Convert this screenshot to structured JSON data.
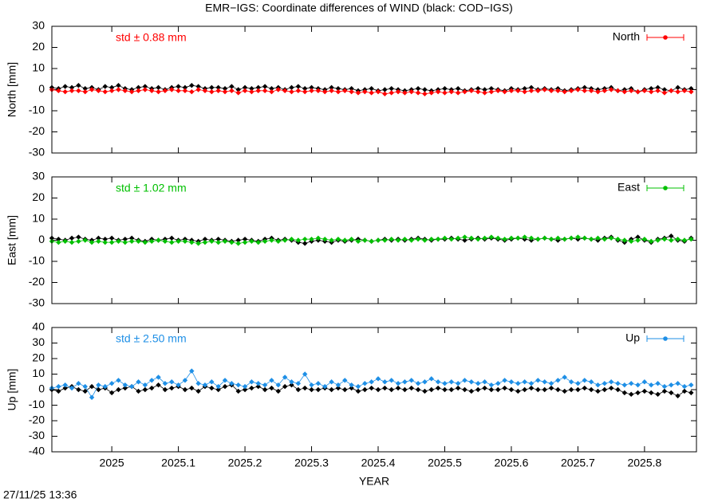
{
  "title": "EMR−IGS: Coordinate differences of WIND (black: COD−IGS)",
  "timestamp": "27/11/25 13:36",
  "chart_data": [
    {
      "type": "line",
      "ylabel": "North [mm]",
      "annotation": "std ± 0.88 mm",
      "x": [
        2024.91,
        2024.92,
        2024.93,
        2024.94,
        2024.95,
        2024.96,
        2024.97,
        2024.98,
        2024.99,
        2025.0,
        2025.01,
        2025.02,
        2025.03,
        2025.04,
        2025.05,
        2025.06,
        2025.07,
        2025.08,
        2025.09,
        2025.1,
        2025.11,
        2025.12,
        2025.13,
        2025.14,
        2025.15,
        2025.16,
        2025.17,
        2025.18,
        2025.19,
        2025.2,
        2025.21,
        2025.22,
        2025.23,
        2025.24,
        2025.25,
        2025.26,
        2025.27,
        2025.28,
        2025.29,
        2025.3,
        2025.31,
        2025.32,
        2025.33,
        2025.34,
        2025.35,
        2025.36,
        2025.37,
        2025.38,
        2025.39,
        2025.4,
        2025.41,
        2025.42,
        2025.43,
        2025.44,
        2025.45,
        2025.46,
        2025.47,
        2025.48,
        2025.49,
        2025.5,
        2025.51,
        2025.52,
        2025.53,
        2025.54,
        2025.55,
        2025.56,
        2025.57,
        2025.58,
        2025.59,
        2025.6,
        2025.61,
        2025.62,
        2025.63,
        2025.64,
        2025.65,
        2025.66,
        2025.67,
        2025.68,
        2025.69,
        2025.7,
        2025.71,
        2025.72,
        2025.73,
        2025.74,
        2025.75,
        2025.76,
        2025.77,
        2025.78,
        2025.79,
        2025.8,
        2025.81,
        2025.82,
        2025.83,
        2025.84,
        2025.85,
        2025.86,
        2025.87
      ],
      "series": [
        {
          "color": "#000000",
          "values": [
            1,
            0.5,
            1.5,
            1,
            2,
            0.5,
            1,
            0,
            1.5,
            1,
            2,
            0.5,
            0,
            1,
            1.5,
            0.5,
            1,
            0,
            1,
            1.5,
            1,
            2,
            1.5,
            0.5,
            1,
            1,
            0.5,
            1.5,
            0,
            1,
            0.5,
            1,
            1.5,
            0.5,
            1,
            0,
            1,
            1.5,
            0.5,
            1,
            0.5,
            0,
            1,
            0.5,
            0,
            0.5,
            -0.5,
            0,
            0.5,
            -0.5,
            0,
            0.5,
            0,
            -0.5,
            0,
            0.5,
            0,
            -0.5,
            0,
            0.5,
            0,
            0.5,
            -0.5,
            0,
            0.5,
            0,
            0.5,
            0,
            -0.5,
            0.5,
            0,
            0.5,
            1,
            0,
            0.5,
            0,
            0.5,
            -0.5,
            0,
            0.5,
            1,
            0.5,
            0,
            0.5,
            1,
            -0.5,
            0,
            0.5,
            -1,
            0,
            0.5,
            1,
            0,
            -0.5,
            1,
            0,
            0.5
          ]
        },
        {
          "name": "North",
          "color": "#ff0000",
          "values": [
            0,
            -0.5,
            -1,
            -0.5,
            -0.5,
            -1,
            0,
            -0.5,
            -1,
            -0.5,
            0,
            -0.5,
            -1,
            -0.5,
            0,
            -0.5,
            -1,
            -0.5,
            0,
            -0.5,
            -0.5,
            -1,
            0,
            -0.5,
            -1,
            -0.5,
            -1,
            -0.5,
            -1.5,
            -0.5,
            -1,
            -0.5,
            -0.5,
            -1,
            0,
            -0.5,
            -1,
            -0.5,
            -1,
            -0.5,
            -0.5,
            -1,
            -0.5,
            -1,
            -0.5,
            -1,
            -1.5,
            -1,
            -1.5,
            -1,
            -2,
            -1.5,
            -1,
            -1.5,
            -1,
            -1.5,
            -2,
            -1.5,
            -1,
            -1.5,
            -1,
            -1.5,
            -1,
            -0.5,
            -1,
            -1.5,
            -1,
            -0.5,
            -1,
            -0.5,
            -0.5,
            -1,
            -0.5,
            -0.5,
            0,
            -0.5,
            -0.5,
            -1,
            -0.5,
            0,
            -0.5,
            -0.5,
            -1,
            -0.5,
            0,
            -0.5,
            -1,
            -0.5,
            -1,
            -0.5,
            -1,
            -0.5,
            -1.5,
            -0.5,
            -1,
            -0.5,
            -1
          ]
        }
      ],
      "xlim": [
        2024.91,
        2025.878
      ],
      "xticks": [
        2025,
        2025.1,
        2025.2,
        2025.3,
        2025.4,
        2025.5,
        2025.6,
        2025.7,
        2025.8
      ],
      "ylim": [
        -30,
        30
      ],
      "yticks": [
        -30,
        -20,
        -10,
        0,
        10,
        20,
        30
      ],
      "legend": "upper right"
    },
    {
      "type": "line",
      "ylabel": "East [mm]",
      "annotation": "std ± 1.02 mm",
      "x": [
        2024.91,
        2024.92,
        2024.93,
        2024.94,
        2024.95,
        2024.96,
        2024.97,
        2024.98,
        2024.99,
        2025.0,
        2025.01,
        2025.02,
        2025.03,
        2025.04,
        2025.05,
        2025.06,
        2025.07,
        2025.08,
        2025.09,
        2025.1,
        2025.11,
        2025.12,
        2025.13,
        2025.14,
        2025.15,
        2025.16,
        2025.17,
        2025.18,
        2025.19,
        2025.2,
        2025.21,
        2025.22,
        2025.23,
        2025.24,
        2025.25,
        2025.26,
        2025.27,
        2025.28,
        2025.29,
        2025.3,
        2025.31,
        2025.32,
        2025.33,
        2025.34,
        2025.35,
        2025.36,
        2025.37,
        2025.38,
        2025.39,
        2025.4,
        2025.41,
        2025.42,
        2025.43,
        2025.44,
        2025.45,
        2025.46,
        2025.47,
        2025.48,
        2025.49,
        2025.5,
        2025.51,
        2025.52,
        2025.53,
        2025.54,
        2025.55,
        2025.56,
        2025.57,
        2025.58,
        2025.59,
        2025.6,
        2025.61,
        2025.62,
        2025.63,
        2025.64,
        2025.65,
        2025.66,
        2025.67,
        2025.68,
        2025.69,
        2025.7,
        2025.71,
        2025.72,
        2025.73,
        2025.74,
        2025.75,
        2025.76,
        2025.77,
        2025.78,
        2025.79,
        2025.8,
        2025.81,
        2025.82,
        2025.83,
        2025.84,
        2025.85,
        2025.86,
        2025.87
      ],
      "series": [
        {
          "color": "#000000",
          "values": [
            1,
            0.5,
            0,
            1,
            1.5,
            0.5,
            0,
            1,
            0.5,
            1,
            0,
            0.5,
            1,
            0,
            -0.5,
            0.5,
            0,
            0.5,
            1,
            0,
            0.5,
            0,
            -0.5,
            0.5,
            0,
            0.5,
            0,
            -0.5,
            0,
            0.5,
            0,
            -0.5,
            0.5,
            1,
            0,
            0.5,
            0,
            -1,
            -1.5,
            -0.5,
            0,
            -0.5,
            -1,
            0,
            -0.5,
            0,
            0.5,
            0,
            -0.5,
            0,
            0.5,
            0,
            0.5,
            0,
            0.5,
            1,
            0.5,
            0,
            0.5,
            0.5,
            1,
            0.5,
            0,
            0.5,
            1,
            0.5,
            1,
            0.5,
            0,
            0.5,
            1,
            0.5,
            0,
            0.5,
            1,
            0.5,
            0,
            0.5,
            1,
            0.5,
            1,
            0.5,
            0,
            1,
            1.5,
            0,
            -1,
            0.5,
            1.5,
            0,
            -1,
            0.5,
            1,
            2,
            0,
            -0.5,
            1
          ]
        },
        {
          "name": "East",
          "color": "#00c000",
          "values": [
            -0.5,
            -1,
            -0.5,
            -1,
            -0.5,
            0,
            -1,
            -0.5,
            -1,
            -1,
            -0.5,
            -1,
            -0.5,
            -0.5,
            -1,
            -0.5,
            0,
            -0.5,
            -1,
            -0.5,
            -0.5,
            -1,
            -1.5,
            -1,
            -0.5,
            -1,
            -0.5,
            -1,
            -1.5,
            -1,
            -0.5,
            -1,
            -0.5,
            0,
            -0.5,
            0,
            0.5,
            0,
            0.5,
            0.5,
            1,
            0.5,
            0,
            0.5,
            0,
            0.5,
            -0.5,
            0,
            -0.5,
            0,
            0,
            0.5,
            0,
            0.5,
            0,
            0.5,
            0,
            0.5,
            0.5,
            1,
            0.5,
            1,
            1.5,
            1,
            0.5,
            1,
            1.5,
            1,
            0.5,
            1,
            1,
            1.5,
            1,
            0.5,
            1,
            0.5,
            1,
            0.5,
            1,
            1.5,
            1,
            0.5,
            1,
            0.5,
            1,
            0.5,
            0,
            -0.5,
            0,
            0.5,
            -0.5,
            0,
            0.5,
            0,
            0.5,
            0,
            0.5
          ]
        }
      ],
      "xlim": [
        2024.91,
        2025.878
      ],
      "xticks": [
        2025,
        2025.1,
        2025.2,
        2025.3,
        2025.4,
        2025.5,
        2025.6,
        2025.7,
        2025.8
      ],
      "ylim": [
        -30,
        30
      ],
      "yticks": [
        -30,
        -20,
        -10,
        0,
        10,
        20,
        30
      ],
      "legend": "upper right"
    },
    {
      "type": "line",
      "ylabel": "Up [mm]",
      "xlabel": "YEAR",
      "annotation": "std ± 2.50 mm",
      "x": [
        2024.91,
        2024.92,
        2024.93,
        2024.94,
        2024.95,
        2024.96,
        2024.97,
        2024.98,
        2024.99,
        2025.0,
        2025.01,
        2025.02,
        2025.03,
        2025.04,
        2025.05,
        2025.06,
        2025.07,
        2025.08,
        2025.09,
        2025.1,
        2025.11,
        2025.12,
        2025.13,
        2025.14,
        2025.15,
        2025.16,
        2025.17,
        2025.18,
        2025.19,
        2025.2,
        2025.21,
        2025.22,
        2025.23,
        2025.24,
        2025.25,
        2025.26,
        2025.27,
        2025.28,
        2025.29,
        2025.3,
        2025.31,
        2025.32,
        2025.33,
        2025.34,
        2025.35,
        2025.36,
        2025.37,
        2025.38,
        2025.39,
        2025.4,
        2025.41,
        2025.42,
        2025.43,
        2025.44,
        2025.45,
        2025.46,
        2025.47,
        2025.48,
        2025.49,
        2025.5,
        2025.51,
        2025.52,
        2025.53,
        2025.54,
        2025.55,
        2025.56,
        2025.57,
        2025.58,
        2025.59,
        2025.6,
        2025.61,
        2025.62,
        2025.63,
        2025.64,
        2025.65,
        2025.66,
        2025.67,
        2025.68,
        2025.69,
        2025.7,
        2025.71,
        2025.72,
        2025.73,
        2025.74,
        2025.75,
        2025.76,
        2025.77,
        2025.78,
        2025.79,
        2025.8,
        2025.81,
        2025.82,
        2025.83,
        2025.84,
        2025.85,
        2025.86,
        2025.87
      ],
      "series": [
        {
          "color": "#000000",
          "values": [
            0,
            -1,
            1,
            2,
            0,
            -1,
            2,
            0,
            1,
            -2,
            0,
            1,
            2,
            -1,
            0,
            1,
            3,
            0,
            1,
            2,
            0,
            1,
            -1,
            2,
            1,
            0,
            2,
            3,
            -1,
            0,
            1,
            2,
            0,
            1,
            -1,
            2,
            3,
            0,
            1,
            0,
            0,
            1,
            0,
            1,
            0,
            1,
            -1,
            0,
            1,
            0,
            1,
            0,
            1,
            0,
            1,
            0,
            -1,
            0,
            1,
            0,
            0,
            1,
            0,
            -1,
            0,
            1,
            0,
            0,
            1,
            0,
            -1,
            0,
            1,
            0,
            0,
            1,
            0,
            -1,
            0,
            0,
            1,
            0,
            -1,
            0,
            1,
            0,
            -2,
            -3,
            -2,
            -1,
            -2,
            -3,
            -1,
            -2,
            -4,
            -1,
            -2
          ]
        },
        {
          "name": "Up",
          "color": "#1e8fe6",
          "values": [
            1,
            2,
            3,
            1,
            4,
            2,
            -5,
            3,
            2,
            4,
            6,
            3,
            2,
            5,
            3,
            6,
            8,
            4,
            5,
            3,
            6,
            12,
            4,
            3,
            5,
            2,
            6,
            4,
            3,
            2,
            5,
            4,
            3,
            6,
            3,
            8,
            5,
            4,
            10,
            3,
            4,
            2,
            5,
            3,
            6,
            3,
            2,
            4,
            5,
            7,
            5,
            6,
            4,
            5,
            6,
            4,
            5,
            7,
            5,
            4,
            5,
            4,
            6,
            5,
            4,
            5,
            3,
            4,
            6,
            5,
            4,
            5,
            4,
            6,
            5,
            4,
            6,
            8,
            5,
            4,
            6,
            5,
            3,
            4,
            5,
            4,
            3,
            4,
            3,
            5,
            3,
            4,
            2,
            3,
            4,
            2,
            3
          ]
        }
      ],
      "xlim": [
        2024.91,
        2025.878
      ],
      "xticks": [
        2025,
        2025.1,
        2025.2,
        2025.3,
        2025.4,
        2025.5,
        2025.6,
        2025.7,
        2025.8
      ],
      "ylim": [
        -40,
        40
      ],
      "yticks": [
        -40,
        -30,
        -20,
        -10,
        0,
        10,
        20,
        30,
        40
      ],
      "legend": "upper right"
    }
  ]
}
